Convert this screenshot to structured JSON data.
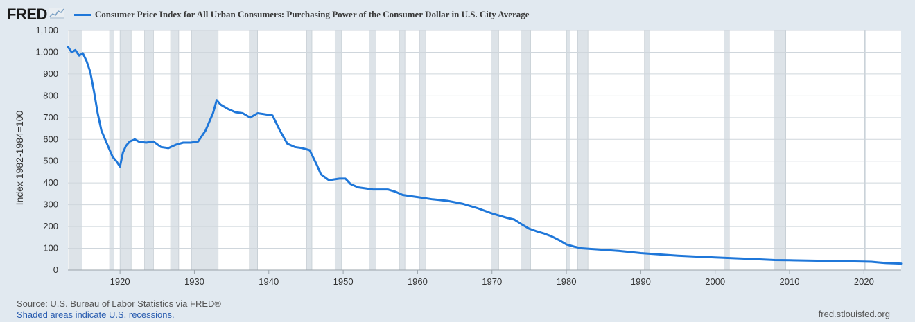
{
  "header": {
    "logo_text": "FRED",
    "series_title": "Consumer Price Index for All Urban Consumers: Purchasing Power of the Consumer Dollar in U.S. City Average"
  },
  "footer": {
    "source": "Source: U.S. Bureau of Labor Statistics via FRED®",
    "note": "Shaded areas indicate U.S. recessions.",
    "site": "fred.stlouisfed.org"
  },
  "colors": {
    "line": "#1f77d9",
    "recession": "#dde3e8",
    "recession_border": "#b9c2c9",
    "plot_bg": "#ffffff",
    "page_bg": "#e1e9f0"
  },
  "chart_data": {
    "type": "line",
    "title": "Consumer Price Index for All Urban Consumers: Purchasing Power of the Consumer Dollar in U.S. City Average",
    "xlabel": "",
    "ylabel": "Index 1982-1984=100",
    "xlim": [
      1913,
      2025
    ],
    "ylim": [
      0,
      1100
    ],
    "x_ticks": [
      1920,
      1930,
      1940,
      1950,
      1960,
      1970,
      1980,
      1990,
      2000,
      2010,
      2020
    ],
    "y_ticks": [
      0,
      100,
      200,
      300,
      400,
      500,
      600,
      700,
      800,
      900,
      1000,
      1100
    ],
    "y_tick_labels": [
      "0",
      "100",
      "200",
      "300",
      "400",
      "500",
      "600",
      "700",
      "800",
      "900",
      "1,000",
      "1,100"
    ],
    "grid": "horizontal",
    "recessions": [
      [
        1913.1,
        1914.9
      ],
      [
        1918.6,
        1919.2
      ],
      [
        1920.0,
        1921.5
      ],
      [
        1923.3,
        1924.5
      ],
      [
        1926.8,
        1927.9
      ],
      [
        1929.6,
        1933.2
      ],
      [
        1937.4,
        1938.5
      ],
      [
        1945.1,
        1945.8
      ],
      [
        1948.9,
        1949.8
      ],
      [
        1953.5,
        1954.4
      ],
      [
        1957.6,
        1958.3
      ],
      [
        1960.3,
        1961.1
      ],
      [
        1969.9,
        1970.9
      ],
      [
        1973.9,
        1975.2
      ],
      [
        1980.0,
        1980.5
      ],
      [
        1981.5,
        1982.9
      ],
      [
        1990.5,
        1991.2
      ],
      [
        2001.2,
        2001.9
      ],
      [
        2007.9,
        2009.5
      ],
      [
        2020.1,
        2020.3
      ]
    ],
    "series": [
      {
        "x": [
          1913.0,
          1913.5,
          1914.0,
          1914.5,
          1915.0,
          1915.5,
          1916.0,
          1916.5,
          1917.0,
          1917.5,
          1918.0,
          1918.5,
          1919.0,
          1919.5,
          1920.0,
          1920.4,
          1920.8,
          1921.3,
          1922.0,
          1922.5,
          1923.5,
          1924.5,
          1925.5,
          1926.5,
          1927.5,
          1928.5,
          1929.5,
          1930.5,
          1931.5,
          1932.5,
          1933.0,
          1933.5,
          1934.5,
          1935.5,
          1936.5,
          1937.5,
          1938.5,
          1939.5,
          1940.5,
          1941.5,
          1942.5,
          1943.5,
          1944.5,
          1945.5,
          1946.5,
          1947.0,
          1948.0,
          1948.5,
          1949.5,
          1950.3,
          1951.0,
          1952.0,
          1953.0,
          1954.0,
          1955.0,
          1956.0,
          1957.0,
          1958.0,
          1959.0,
          1960.0,
          1962.0,
          1964.0,
          1966.0,
          1968.0,
          1970.0,
          1972.0,
          1973.0,
          1974.0,
          1975.0,
          1976.0,
          1977.0,
          1978.0,
          1979.0,
          1980.0,
          1981.0,
          1982.0,
          1983.0,
          1985.0,
          1987.0,
          1990.0,
          1995.0,
          2000.0,
          2005.0,
          2008.0,
          2010.0,
          2015.0,
          2020.0,
          2021.0,
          2022.0,
          2023.0,
          2024.0,
          2025.0
        ],
        "values": [
          1025,
          1000,
          1010,
          985,
          995,
          960,
          910,
          820,
          720,
          640,
          600,
          560,
          520,
          500,
          475,
          540,
          570,
          590,
          600,
          590,
          585,
          590,
          565,
          560,
          575,
          585,
          585,
          590,
          640,
          720,
          780,
          760,
          740,
          725,
          720,
          700,
          720,
          715,
          710,
          640,
          580,
          565,
          560,
          550,
          480,
          440,
          415,
          415,
          420,
          420,
          395,
          380,
          375,
          370,
          370,
          370,
          360,
          345,
          340,
          335,
          325,
          318,
          305,
          285,
          260,
          240,
          232,
          210,
          190,
          178,
          168,
          155,
          138,
          118,
          108,
          100,
          98,
          93,
          88,
          78,
          66,
          58,
          51,
          46,
          45,
          42,
          39,
          38,
          35,
          32,
          31,
          30
        ]
      }
    ]
  }
}
